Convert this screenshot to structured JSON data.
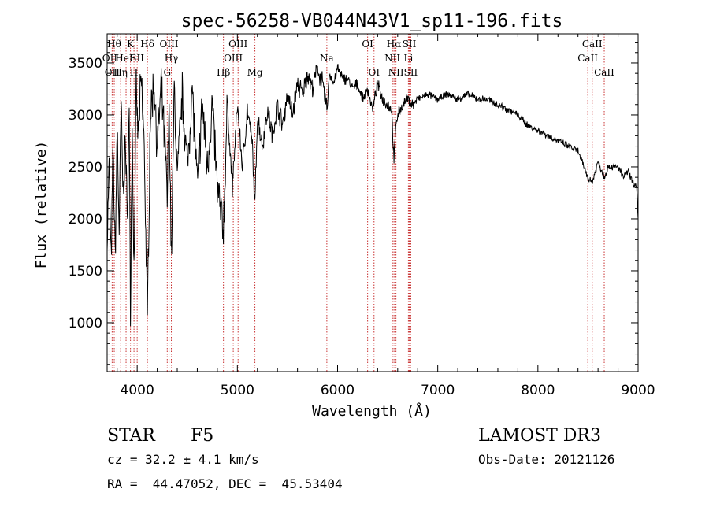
{
  "chart_data": {
    "type": "line",
    "title": "spec-56258-VB044N43V1_sp11-196.fits",
    "xlabel": "Wavelength (Å)",
    "ylabel": "Flux (relative)",
    "xlim": [
      3700,
      9000
    ],
    "ylim": [
      530,
      3780
    ],
    "xticks": [
      4000,
      5000,
      6000,
      7000,
      8000,
      9000
    ],
    "yticks": [
      1000,
      1500,
      2000,
      2500,
      3000,
      3500
    ],
    "grid": false,
    "spectrum_anchors": [
      [
        3700,
        1800
      ],
      [
        3720,
        2500
      ],
      [
        3740,
        1550
      ],
      [
        3760,
        2700
      ],
      [
        3780,
        1600
      ],
      [
        3800,
        2900
      ],
      [
        3820,
        1900
      ],
      [
        3840,
        3100
      ],
      [
        3860,
        2200
      ],
      [
        3880,
        2800
      ],
      [
        3900,
        2000
      ],
      [
        3920,
        3050
      ],
      [
        3933,
        1100
      ],
      [
        3950,
        2900
      ],
      [
        3968,
        1500
      ],
      [
        3990,
        3200
      ],
      [
        4010,
        2800
      ],
      [
        4040,
        3350
      ],
      [
        4070,
        2700
      ],
      [
        4102,
        1000
      ],
      [
        4130,
        3000
      ],
      [
        4170,
        3300
      ],
      [
        4200,
        2700
      ],
      [
        4240,
        3250
      ],
      [
        4280,
        2650
      ],
      [
        4300,
        2200
      ],
      [
        4320,
        3100
      ],
      [
        4341,
        1600
      ],
      [
        4370,
        3250
      ],
      [
        4400,
        2400
      ],
      [
        4450,
        3200
      ],
      [
        4500,
        2500
      ],
      [
        4550,
        3250
      ],
      [
        4600,
        2300
      ],
      [
        4650,
        3100
      ],
      [
        4700,
        2500
      ],
      [
        4750,
        3100
      ],
      [
        4800,
        2300
      ],
      [
        4861,
        1900
      ],
      [
        4900,
        3100
      ],
      [
        4950,
        2300
      ],
      [
        5000,
        3100
      ],
      [
        5050,
        2500
      ],
      [
        5100,
        3050
      ],
      [
        5150,
        2700
      ],
      [
        5175,
        2100
      ],
      [
        5200,
        3000
      ],
      [
        5250,
        2700
      ],
      [
        5300,
        3050
      ],
      [
        5350,
        2800
      ],
      [
        5400,
        3100
      ],
      [
        5450,
        2900
      ],
      [
        5500,
        3200
      ],
      [
        5550,
        3000
      ],
      [
        5600,
        3300
      ],
      [
        5650,
        3200
      ],
      [
        5700,
        3400
      ],
      [
        5750,
        3250
      ],
      [
        5800,
        3450
      ],
      [
        5850,
        3300
      ],
      [
        5893,
        3050
      ],
      [
        5920,
        3400
      ],
      [
        5960,
        3300
      ],
      [
        6000,
        3450
      ],
      [
        6050,
        3350
      ],
      [
        6100,
        3350
      ],
      [
        6150,
        3250
      ],
      [
        6200,
        3300
      ],
      [
        6250,
        3150
      ],
      [
        6300,
        3250
      ],
      [
        6350,
        3050
      ],
      [
        6400,
        3300
      ],
      [
        6450,
        3150
      ],
      [
        6500,
        3100
      ],
      [
        6540,
        3050
      ],
      [
        6563,
        2550
      ],
      [
        6585,
        2950
      ],
      [
        6620,
        3050
      ],
      [
        6660,
        3100
      ],
      [
        6700,
        3150
      ],
      [
        6750,
        3100
      ],
      [
        6800,
        3150
      ],
      [
        6900,
        3200
      ],
      [
        7000,
        3150
      ],
      [
        7100,
        3200
      ],
      [
        7200,
        3150
      ],
      [
        7300,
        3200
      ],
      [
        7400,
        3150
      ],
      [
        7500,
        3150
      ],
      [
        7600,
        3100
      ],
      [
        7700,
        3050
      ],
      [
        7800,
        3000
      ],
      [
        7900,
        2900
      ],
      [
        8000,
        2850
      ],
      [
        8100,
        2800
      ],
      [
        8200,
        2750
      ],
      [
        8300,
        2700
      ],
      [
        8400,
        2650
      ],
      [
        8498,
        2400
      ],
      [
        8542,
        2350
      ],
      [
        8600,
        2550
      ],
      [
        8662,
        2400
      ],
      [
        8700,
        2500
      ],
      [
        8800,
        2500
      ],
      [
        8850,
        2400
      ],
      [
        8900,
        2450
      ],
      [
        8950,
        2350
      ],
      [
        8985,
        2300
      ],
      [
        9000,
        2000
      ]
    ],
    "lines": [
      {
        "wave": 3727,
        "label": "OII",
        "row": 2
      },
      {
        "wave": 3750,
        "label": "OII",
        "row": 3
      },
      {
        "wave": 3771,
        "label": "Hθ",
        "row": 1
      },
      {
        "wave": 3798,
        "label": "",
        "row": 0
      },
      {
        "wave": 3835,
        "label": "Hη",
        "row": 3
      },
      {
        "wave": 3869,
        "label": "HeI",
        "row": 2
      },
      {
        "wave": 3889,
        "label": "",
        "row": 0
      },
      {
        "wave": 3933,
        "label": "K",
        "row": 1
      },
      {
        "wave": 3968,
        "label": "H",
        "row": 3
      },
      {
        "wave": 4000,
        "label": "SII",
        "row": 2
      },
      {
        "wave": 4102,
        "label": "Hδ",
        "row": 1
      },
      {
        "wave": 4300,
        "label": "G",
        "row": 3
      },
      {
        "wave": 4318,
        "label": "OIII",
        "row": 1
      },
      {
        "wave": 4341,
        "label": "Hγ",
        "row": 2
      },
      {
        "wave": 4861,
        "label": "Hβ",
        "row": 3
      },
      {
        "wave": 4959,
        "label": "OIII",
        "row": 2
      },
      {
        "wave": 5007,
        "label": "OIII",
        "row": 1
      },
      {
        "wave": 5175,
        "label": "Mg",
        "row": 3
      },
      {
        "wave": 5893,
        "label": "Na",
        "row": 2
      },
      {
        "wave": 6300,
        "label": "OI",
        "row": 1
      },
      {
        "wave": 6364,
        "label": "OI",
        "row": 3
      },
      {
        "wave": 6548,
        "label": "NII",
        "row": 2
      },
      {
        "wave": 6563,
        "label": "Hα",
        "row": 1
      },
      {
        "wave": 6583,
        "label": "NII",
        "row": 3
      },
      {
        "wave": 6707,
        "label": "Li",
        "row": 2
      },
      {
        "wave": 6716,
        "label": "SII",
        "row": 1
      },
      {
        "wave": 6731,
        "label": "SII",
        "row": 3
      },
      {
        "wave": 8498,
        "label": "CaII",
        "row": 2
      },
      {
        "wave": 8542,
        "label": "CaII",
        "row": 1
      },
      {
        "wave": 8662,
        "label": "CaII",
        "row": 3
      }
    ]
  },
  "footer": {
    "object": "STAR",
    "subclass": "F5",
    "survey": "LAMOST DR3",
    "cz": "cz = 32.2 ± 4.1 km/s",
    "obs_date": "Obs-Date: 20121126",
    "coords": "RA =  44.47052, DEC =  45.53404"
  },
  "colors": {
    "line_marker": "#c83232",
    "spectrum": "#000000",
    "axes": "#000000"
  }
}
